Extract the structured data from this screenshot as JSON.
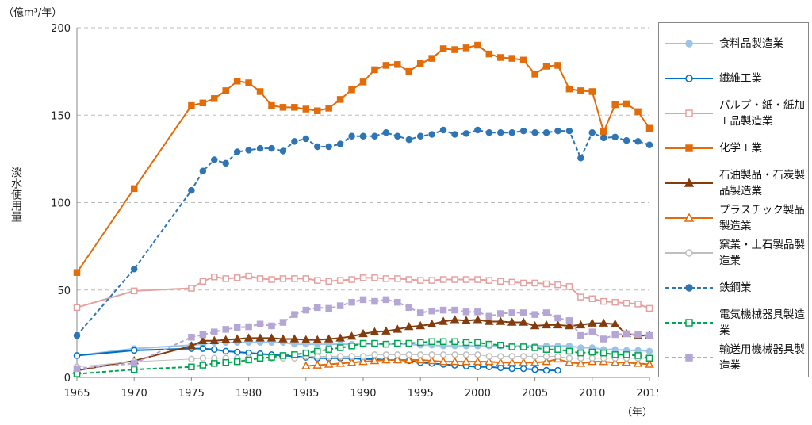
{
  "chart_data": {
    "type": "line",
    "y_unit": "（億m³/年）",
    "ylabel": "淡水使用量",
    "x_unit": "（年）",
    "x": [
      1965,
      1970,
      1975,
      1976,
      1977,
      1978,
      1979,
      1980,
      1981,
      1982,
      1983,
      1984,
      1985,
      1986,
      1987,
      1988,
      1989,
      1990,
      1991,
      1992,
      1993,
      1994,
      1995,
      1996,
      1997,
      1998,
      1999,
      2000,
      2001,
      2002,
      2003,
      2004,
      2005,
      2006,
      2007,
      2008,
      2009,
      2010,
      2011,
      2012,
      2013,
      2014,
      2015
    ],
    "xlim": [
      1965,
      2015
    ],
    "xticks": [
      1965,
      1970,
      1975,
      1980,
      1985,
      1990,
      1995,
      2000,
      2005,
      2010,
      2015
    ],
    "ylim": [
      0,
      200
    ],
    "yticks": [
      0,
      50,
      100,
      150,
      200
    ],
    "grid": true,
    "series": [
      {
        "name": "食料品製造業",
        "color": "#9dc3e6",
        "marker": "circle",
        "filled": true,
        "dashed": false,
        "values": [
          12.5,
          16.5,
          18.5,
          19,
          20,
          20,
          20,
          20,
          20,
          20,
          20,
          19,
          19,
          19,
          19,
          19,
          19,
          19,
          19,
          19,
          19,
          19,
          18.5,
          18.5,
          18,
          18,
          18,
          18,
          18,
          18,
          18,
          18,
          18,
          18,
          18,
          18,
          17,
          17,
          16,
          16,
          15.5,
          15.5,
          15
        ]
      },
      {
        "name": "繊維工業",
        "color": "#0070c0",
        "marker": "circle",
        "filled": false,
        "dashed": false,
        "values": [
          12.5,
          15.5,
          16.5,
          16.5,
          16,
          15,
          14.5,
          14,
          13.5,
          13,
          12.5,
          12,
          11.5,
          11,
          11,
          11,
          11,
          10.5,
          10.5,
          10,
          10,
          9.5,
          8.5,
          8,
          7.5,
          7,
          6.5,
          6,
          6,
          5.5,
          5,
          5,
          4.5,
          4,
          4,
          null,
          null,
          null,
          null,
          null,
          null,
          null,
          null
        ]
      },
      {
        "name": "パルプ・紙・紙加工品製造業",
        "color": "#e6a0a0",
        "marker": "square",
        "filled": false,
        "dashed": false,
        "values": [
          40,
          49.5,
          51,
          55,
          57.5,
          56.5,
          57,
          58,
          56.5,
          56,
          56.5,
          56.5,
          56.5,
          55.5,
          55,
          55.5,
          56,
          57,
          57,
          56.5,
          56.5,
          56,
          55.5,
          55.5,
          56,
          56,
          56,
          56,
          55.5,
          55,
          54.5,
          54,
          54,
          53.5,
          53,
          52,
          46,
          45,
          43.5,
          43,
          42.5,
          42,
          39.5
        ]
      },
      {
        "name": "化学工業",
        "color": "#e36c0a",
        "marker": "square",
        "filled": true,
        "dashed": false,
        "values": [
          60,
          108,
          155.5,
          157,
          159.5,
          164,
          169.5,
          168.5,
          163.5,
          155.5,
          154.5,
          154.5,
          153.5,
          152.5,
          154,
          159,
          164.5,
          169,
          176,
          178.5,
          179,
          175,
          179.5,
          182.5,
          188,
          187.5,
          188.5,
          190,
          185,
          183,
          182.5,
          181.5,
          173.5,
          178,
          178.5,
          165,
          164,
          163.5,
          140.5,
          156,
          156.5,
          152,
          142.5
        ]
      },
      {
        "name": "石油製品・石炭製品製造業",
        "color": "#843c0c",
        "marker": "triangle",
        "filled": true,
        "dashed": false,
        "values": [
          4,
          9.5,
          18,
          21,
          21,
          21.5,
          22,
          22.5,
          22.5,
          22.5,
          22,
          22,
          21.5,
          21.5,
          22,
          22.5,
          23.5,
          25,
          26,
          26.5,
          27.5,
          29,
          29.5,
          30.5,
          32,
          33,
          32.5,
          33,
          32,
          32,
          31.5,
          31.5,
          29.5,
          30,
          30,
          29.5,
          30,
          31,
          31,
          30.5,
          25,
          24,
          24
        ]
      },
      {
        "name": "プラスチック製品製造業",
        "color": "#e36c0a",
        "marker": "triangle",
        "filled": false,
        "dashed": false,
        "values": [
          null,
          null,
          null,
          null,
          null,
          null,
          null,
          null,
          null,
          null,
          null,
          null,
          6.5,
          7,
          7.5,
          8,
          8.5,
          9,
          9.5,
          10,
          10,
          10,
          10,
          9.5,
          9,
          9,
          9,
          9,
          9,
          8.5,
          8.5,
          8.5,
          8.5,
          9,
          10.5,
          8.5,
          8,
          9,
          9,
          8.5,
          8.5,
          8,
          7.5
        ]
      },
      {
        "name": "窯業・土石製品製造業",
        "color": "#bfbfbf",
        "marker": "circle",
        "filled": false,
        "dashed": false,
        "values": [
          6,
          9,
          10.5,
          11,
          11,
          11,
          11,
          11,
          11,
          11,
          11,
          11,
          12,
          12,
          12,
          12,
          12,
          12,
          13,
          13,
          13,
          13,
          13,
          13,
          13,
          13,
          13,
          13,
          12,
          12,
          12,
          12,
          12,
          12,
          12,
          11,
          11,
          11,
          11,
          11,
          11,
          11,
          11
        ]
      },
      {
        "name": "鉄鋼業",
        "color": "#2e75b6",
        "marker": "circle",
        "filled": true,
        "dashed": true,
        "values": [
          24,
          62,
          107,
          118,
          124.5,
          122.5,
          129,
          130,
          131,
          131,
          129.5,
          135,
          136.5,
          132,
          132,
          133.5,
          138,
          138,
          138,
          140,
          138,
          136,
          138,
          139,
          141.5,
          139,
          139.5,
          141.5,
          140,
          140,
          140,
          141,
          140,
          140,
          141,
          141,
          125.5,
          140,
          137,
          137.5,
          135.5,
          135,
          133
        ]
      },
      {
        "name": "電気機械器具製造業",
        "color": "#00a550",
        "marker": "square",
        "filled": false,
        "dashed": true,
        "values": [
          2,
          4.5,
          6,
          7,
          8,
          8.5,
          9,
          10,
          11,
          11.5,
          12.5,
          13,
          14,
          15,
          16,
          17,
          18,
          19.5,
          19.5,
          19,
          19.5,
          19.5,
          20,
          20.5,
          20.5,
          20.5,
          20,
          20,
          19,
          18.5,
          17.5,
          17.5,
          17,
          16,
          16,
          15,
          14,
          14.5,
          14,
          13,
          13,
          12.5,
          11
        ]
      },
      {
        "name": "輸送用機械器具製造業",
        "color": "#b4a7d6",
        "marker": "square",
        "filled": true,
        "dashed": true,
        "values": [
          5,
          8,
          23,
          24.5,
          26,
          27.5,
          28.5,
          29,
          30.5,
          29.5,
          31.5,
          36,
          38.5,
          40,
          39.5,
          41,
          43,
          44.5,
          43.5,
          44.5,
          43,
          40,
          37,
          38,
          38.5,
          38.5,
          37.5,
          37.5,
          35,
          36.5,
          37,
          37,
          36,
          37,
          34,
          32.5,
          24,
          26,
          22,
          24.5,
          25,
          24.5,
          24
        ]
      }
    ]
  }
}
